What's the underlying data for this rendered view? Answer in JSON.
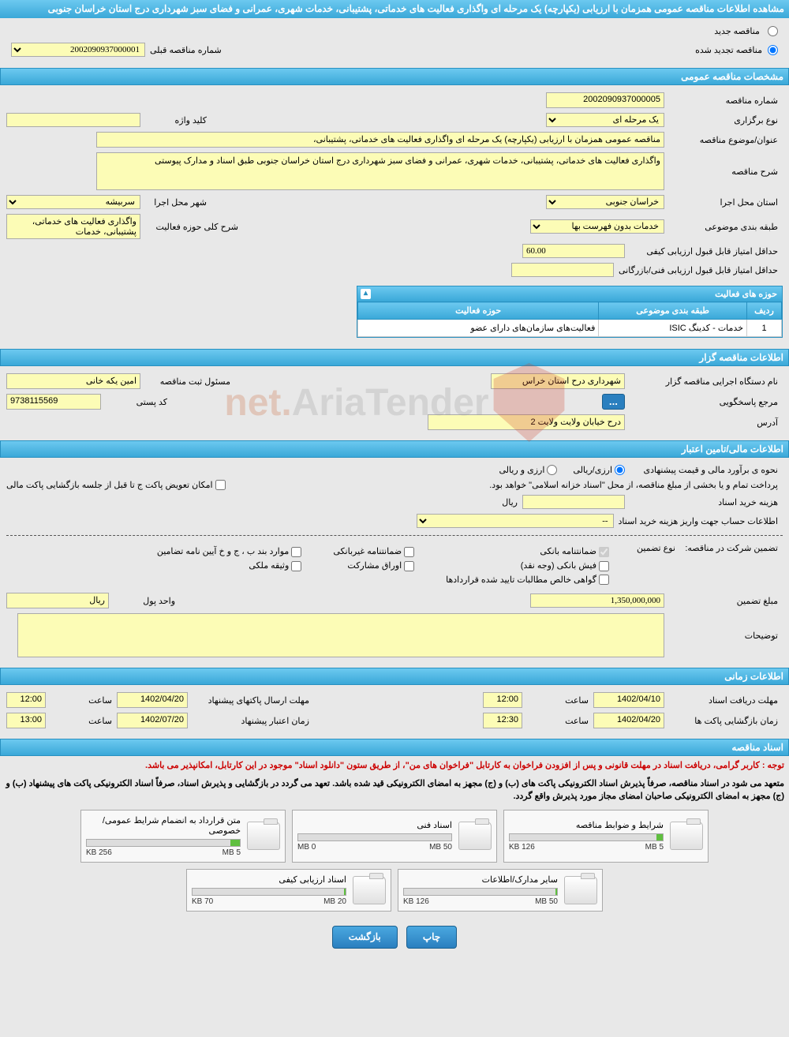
{
  "colors": {
    "header_gradient_top": "#6cc9f0",
    "header_gradient_bottom": "#3aa8d8",
    "header_border": "#2890c0",
    "field_bg": "#fcfcb6",
    "body_bg": "#e8e8e8",
    "red": "#c00",
    "button_bg": "#2a7fbf"
  },
  "page_title": "مشاهده اطلاعات مناقصه عمومی همزمان با ارزیابی (یکپارچه) یک مرحله ای واگذاری فعالیت های خدماتی، پشتیبانی، خدمات شهری، عمرانی و فضای سبز شهرداری درج استان خراسان جنوبی",
  "top": {
    "radio_new": "مناقصه جدید",
    "radio_renew": "مناقصه تجدید شده",
    "prev_number_label": "شماره مناقصه قبلی",
    "prev_number_value": "2002090937000001"
  },
  "general": {
    "header": "مشخصات مناقصه عمومی",
    "number_label": "شماره مناقصه",
    "number_value": "2002090937000005",
    "type_label": "نوع برگزاری",
    "type_value": "یک مرحله ای",
    "keyword_label": "کلید واژه",
    "keyword_value": "",
    "subject_label": "عنوان/موضوع مناقصه",
    "subject_value": "مناقصه عمومی همزمان با ارزیابی (یکپارچه) یک مرحله ای  واگذاری فعالیت های خدماتی، پشتیبانی،",
    "desc_label": "شرح مناقصه",
    "desc_value": "واگذاری فعالیت های خدماتی، پشتیبانی، خدمات شهری، عمرانی و فضای سبز شهرداری درج استان خراسان جنوبی طبق اسناد و مدارک پیوستی",
    "province_label": "استان محل اجرا",
    "province_value": "خراسان جنوبی",
    "city_label": "شهر محل اجرا",
    "city_value": "سربیشه",
    "category_label": "طبقه بندی موضوعی",
    "category_value": "خدمات بدون فهرست بها",
    "scope_label": "شرح کلی حوزه فعالیت",
    "scope_value": "واگذاری فعالیت های خدماتی، پشتیبانی، خدمات",
    "min_quality_score_label": "حداقل امتیاز قابل قبول ارزیابی کیفی",
    "min_quality_score_value": "60.00",
    "min_tech_score_label": "حداقل امتیاز قابل قبول ارزیابی فنی/بازرگانی",
    "min_tech_score_value": ""
  },
  "activity_grid": {
    "title": "حوزه های فعالیت",
    "col_row": "ردیف",
    "col_category": "طبقه بندی موضوعی",
    "col_scope": "حوزه فعالیت",
    "rows": [
      {
        "n": "1",
        "category": "خدمات - کدینگ ISIC",
        "scope": "فعالیت‌های سازمان‌های دارای عضو"
      }
    ]
  },
  "organizer": {
    "header": "اطلاعات مناقصه گزار",
    "org_label": "نام دستگاه اجرایی مناقصه گزار",
    "org_value": "شهرداری درح استان خراس",
    "registrant_label": "مسئول ثبت مناقصه",
    "registrant_value": "امین یکه خانی",
    "response_label": "مرجع پاسخگویی",
    "postal_label": "کد پستی",
    "postal_value": "9738115569",
    "address_label": "آدرس",
    "address_value": "درح خیابان ولایت ولایت 2"
  },
  "financial": {
    "header": "اطلاعات مالی/تامین اعتبار",
    "estimate_label": "نحوه ی برآورد مالی و قیمت پیشنهادی",
    "estimate_opt1": "ارزی/ریالی",
    "estimate_opt2": "ارزی و ریالی",
    "source_note": "پرداخت تمام و یا بخشی از مبلغ مناقصه، از محل \"اسناد خزانه اسلامی\" خواهد بود.",
    "exchange_label": "امکان تعویض پاکت ج تا قبل از جلسه بازگشایی پاکت مالی",
    "doc_price_label": "هزینه خرید اسناد",
    "doc_price_value": "",
    "doc_price_unit": "ریال",
    "account_label": "اطلاعات حساب جهت واریز هزینه خرید اسناد",
    "account_value": "--",
    "guarantee_title_label": "تضمین شرکت در مناقصه:",
    "guarantee_type_label": "نوع تضمین",
    "g1": "ضمانتنامه بانکی",
    "g2": "ضمانتنامه غیربانکی",
    "g3": "موارد بند ب ، ج و خ آیین نامه تضامین",
    "g4": "فیش بانکی (وجه نقد)",
    "g5": "اوراق مشارکت",
    "g6": "وثیقه ملکی",
    "g7": "گواهی خالص مطالبات تایید شده قراردادها",
    "guarantee_amount_label": "مبلغ تضمین",
    "guarantee_amount_value": "1,350,000,000",
    "currency_label": "واحد پول",
    "currency_value": "ريال",
    "notes_label": "توضیحات",
    "notes_value": ""
  },
  "timing": {
    "header": "اطلاعات زمانی",
    "receive_deadline_label": "مهلت دریافت اسناد",
    "receive_deadline_date": "1402/04/10",
    "receive_deadline_time_label": "ساعت",
    "receive_deadline_time": "12:00",
    "send_deadline_label": "مهلت ارسال پاکتهای پیشنهاد",
    "send_deadline_date": "1402/04/20",
    "send_deadline_time": "12:00",
    "open_label": "زمان بازگشایی پاکت ها",
    "open_date": "1402/04/20",
    "open_time": "12:30",
    "validity_label": "زمان اعتبار پیشنهاد",
    "validity_date": "1402/07/20",
    "validity_time": "13:00"
  },
  "documents": {
    "header": "اسناد مناقصه",
    "note_red": "توجه : کاربر گرامی، دریافت اسناد در مهلت قانونی و پس از افزودن فراخوان به کارتابل \"فراخوان های من\"، از طریق ستون \"دانلود اسناد\" موجود در این کارتابل، امکانپذیر می باشد.",
    "note_black1": "متعهد می شود در اسناد مناقصه، صرفاً پذیرش اسناد الکترونیکی پاکت های (ب) و (ج) مجهز به امضای الکترونیکی قید شده باشد. تعهد می گردد در بازگشایی و پذیرش اسناد، صرفاً اسناد الکترونیکی پاکت های پیشنهاد (ب) و (ج) مجهز به امضای الکترونیکی صاحبان امضای مجاز مورد پذیرش واقع گردد.",
    "files": [
      {
        "title": "شرایط و ضوابط مناقصه",
        "used": "126 KB",
        "total": "5 MB",
        "pct": 4
      },
      {
        "title": "اسناد فنی",
        "used": "0 MB",
        "total": "50 MB",
        "pct": 0
      },
      {
        "title": "متن قرارداد به انضمام شرایط عمومی/خصوصی",
        "used": "256 KB",
        "total": "5 MB",
        "pct": 6
      },
      {
        "title": "سایر مدارک/اطلاعات",
        "used": "126 KB",
        "total": "50 MB",
        "pct": 1
      },
      {
        "title": "اسناد ارزیابی کیفی",
        "used": "70 KB",
        "total": "20 MB",
        "pct": 1
      }
    ]
  },
  "buttons": {
    "print": "چاپ",
    "back": "بازگشت"
  },
  "watermark": {
    "text1": "AriaTender",
    "text2": ".net"
  }
}
